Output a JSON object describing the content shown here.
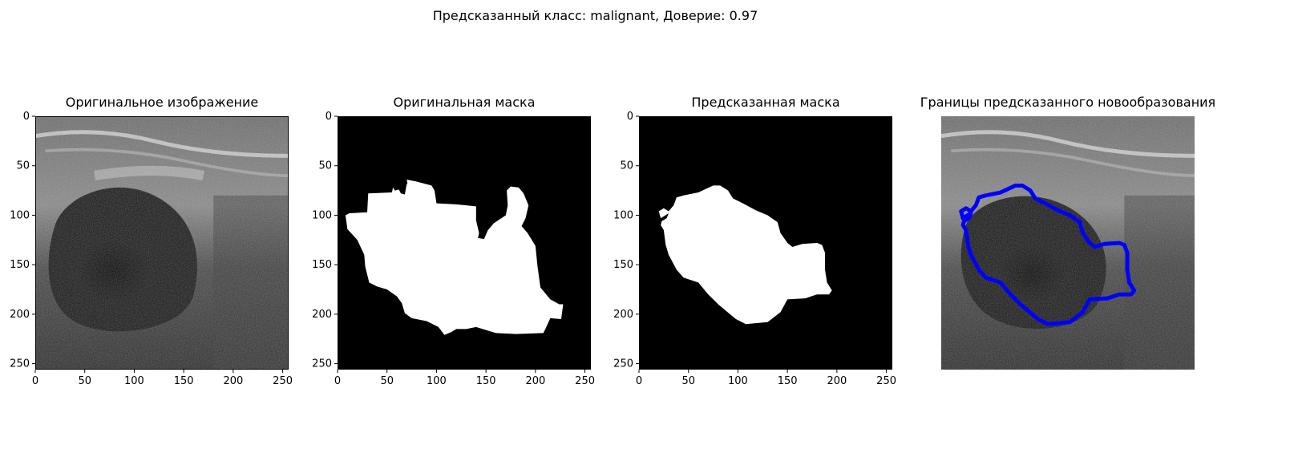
{
  "header": {
    "suptitle": "Предсказанный класс: malignant, Доверие: 0.97"
  },
  "panels": [
    {
      "title": "Оригинальное изображение"
    },
    {
      "title": "Оригинальная маска"
    },
    {
      "title": "Предсказанная маска"
    },
    {
      "title": "Границы предсказанного новообразования"
    }
  ],
  "chart_data": [
    {
      "type": "image",
      "title": "Оригинальное изображение",
      "xticks": [
        0,
        50,
        100,
        150,
        200,
        250
      ],
      "yticks": [
        0,
        50,
        100,
        150,
        200,
        250
      ],
      "xlim": [
        0,
        256
      ],
      "ylim": [
        256,
        0
      ],
      "colormap": "gray"
    },
    {
      "type": "image",
      "title": "Оригинальная маска",
      "xticks": [
        0,
        50,
        100,
        150,
        200,
        250
      ],
      "yticks": [
        0,
        50,
        100,
        150,
        200,
        250
      ],
      "xlim": [
        0,
        256
      ],
      "ylim": [
        256,
        0
      ],
      "colormap": "binary"
    },
    {
      "type": "image",
      "title": "Предсказанная маска",
      "xticks": [
        0,
        50,
        100,
        150,
        200,
        250
      ],
      "yticks": [
        0,
        50,
        100,
        150,
        200,
        250
      ],
      "xlim": [
        0,
        256
      ],
      "ylim": [
        256,
        0
      ],
      "colormap": "binary"
    },
    {
      "type": "image",
      "title": "Границы предсказанного новообразования",
      "axes_visible": false,
      "contour_color": "#0000ff"
    }
  ]
}
